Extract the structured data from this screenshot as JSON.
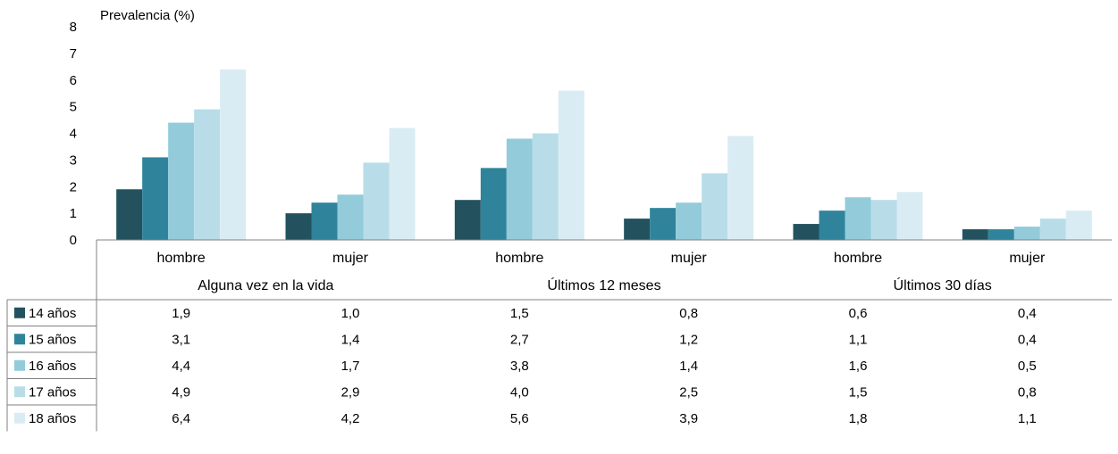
{
  "chart_data": {
    "type": "bar",
    "ylabel": "Prevalencia (%)",
    "ylim": [
      0,
      8
    ],
    "yticks": [
      "0",
      "1",
      "2",
      "3",
      "4",
      "5",
      "6",
      "7",
      "8"
    ],
    "grid": false,
    "legend_placement": "left, in data table rows",
    "groups": [
      {
        "label": "Alguna vez en la vida",
        "categories": [
          "hombre",
          "mujer"
        ]
      },
      {
        "label": "Últimos 12 meses",
        "categories": [
          "hombre",
          "mujer"
        ]
      },
      {
        "label": "Últimos 30 días",
        "categories": [
          "hombre",
          "mujer"
        ]
      }
    ],
    "series": [
      {
        "name": "14 años",
        "color": "#23525e",
        "values": [
          1.9,
          1.0,
          1.5,
          0.8,
          0.6,
          0.4
        ],
        "labels": [
          "1,9",
          "1,0",
          "1,5",
          "0,8",
          "0,6",
          "0,4"
        ]
      },
      {
        "name": "15 años",
        "color": "#2f849b",
        "values": [
          3.1,
          1.4,
          2.7,
          1.2,
          1.1,
          0.4
        ],
        "labels": [
          "3,1",
          "1,4",
          "2,7",
          "1,2",
          "1,1",
          "0,4"
        ]
      },
      {
        "name": "16 años",
        "color": "#93cbdb",
        "values": [
          4.4,
          1.7,
          3.8,
          1.4,
          1.6,
          0.5
        ],
        "labels": [
          "4,4",
          "1,7",
          "3,8",
          "1,4",
          "1,6",
          "0,5"
        ]
      },
      {
        "name": "17 años",
        "color": "#b8dde8",
        "values": [
          4.9,
          2.9,
          4.0,
          2.5,
          1.5,
          0.8
        ],
        "labels": [
          "4,9",
          "2,9",
          "4,0",
          "2,5",
          "1,5",
          "0,8"
        ]
      },
      {
        "name": "18 años",
        "color": "#daecf3",
        "values": [
          6.4,
          4.2,
          5.6,
          3.9,
          1.8,
          1.1
        ],
        "labels": [
          "6,4",
          "4,2",
          "5,6",
          "3,9",
          "1,8",
          "1,1"
        ]
      }
    ]
  }
}
